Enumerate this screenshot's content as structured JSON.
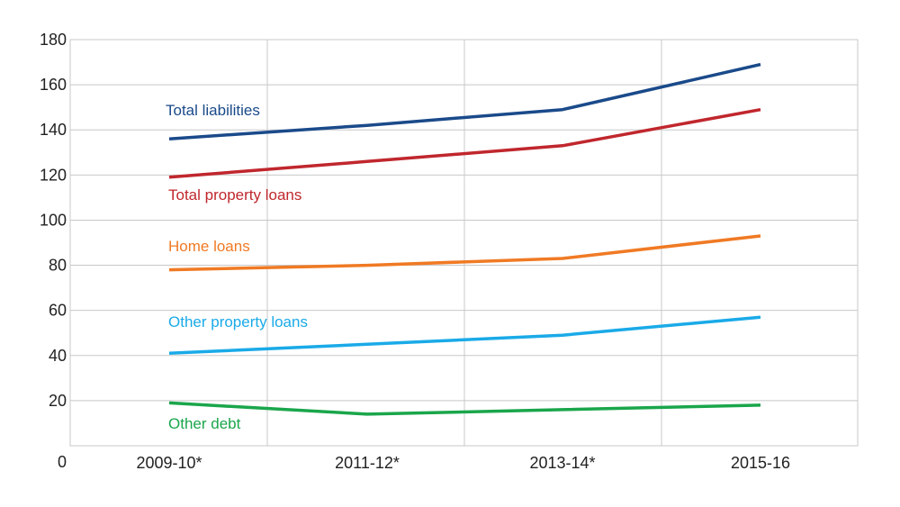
{
  "chart_data": {
    "type": "line",
    "title": "",
    "xlabel": "",
    "ylabel": "",
    "ylim": [
      0,
      180
    ],
    "yticks": [
      0,
      20,
      40,
      60,
      80,
      100,
      120,
      140,
      160,
      180
    ],
    "categories": [
      "2009-10*",
      "2011-12*",
      "2013-14*",
      "2015-16"
    ],
    "grid": true,
    "legend": "inline labels",
    "series": [
      {
        "name": "Total liabilities",
        "color": "#1a4a8a",
        "values": [
          136,
          142,
          149,
          169
        ]
      },
      {
        "name": "Total property loans",
        "color": "#c0272d",
        "values": [
          119,
          126,
          133,
          149
        ]
      },
      {
        "name": "Home loans",
        "color": "#f07a24",
        "values": [
          78,
          80,
          83,
          93
        ]
      },
      {
        "name": "Other property loans",
        "color": "#1aaae8",
        "values": [
          41,
          45,
          49,
          57
        ]
      },
      {
        "name": "Other debt",
        "color": "#1aa64b",
        "values": [
          19,
          14,
          16,
          18
        ]
      }
    ]
  }
}
